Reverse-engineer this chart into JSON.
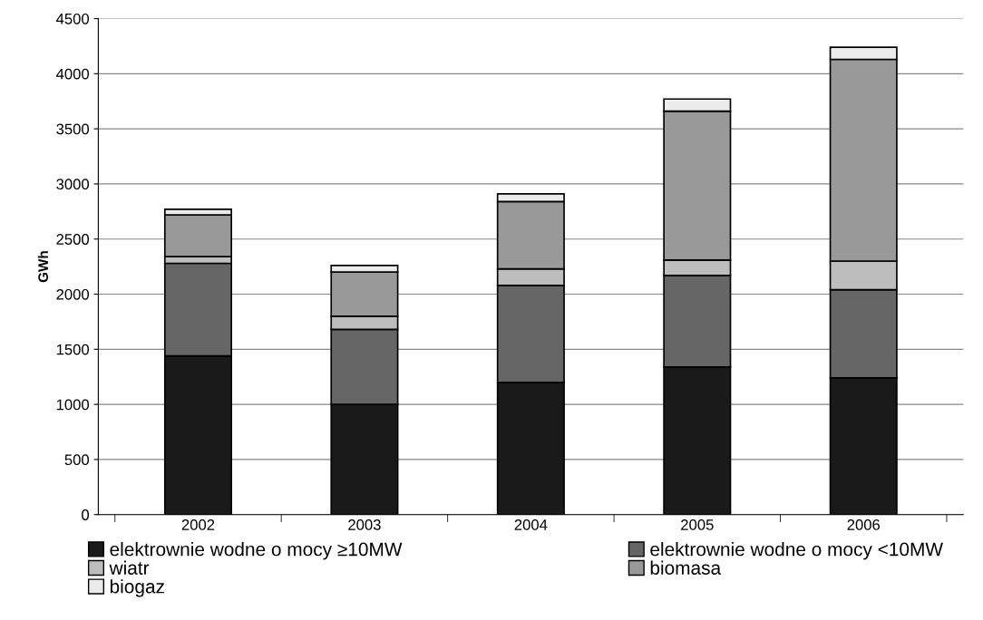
{
  "chart_data": {
    "type": "bar",
    "stacked": true,
    "ylabel": "GWh",
    "categories": [
      "2002",
      "2003",
      "2004",
      "2005",
      "2006"
    ],
    "series": [
      {
        "name": "elektrownie wodne o mocy ≥10MW",
        "color": "#1a1a1a",
        "values": [
          1440,
          1000,
          1200,
          1340,
          1240
        ]
      },
      {
        "name": "elektrownie wodne o mocy <10MW",
        "color": "#666666",
        "values": [
          840,
          680,
          880,
          830,
          800
        ]
      },
      {
        "name": "wiatr",
        "color": "#bdbdbd",
        "values": [
          60,
          120,
          150,
          140,
          260
        ]
      },
      {
        "name": "biomasa",
        "color": "#999999",
        "values": [
          380,
          400,
          610,
          1350,
          1830
        ]
      },
      {
        "name": "biogaz",
        "color": "#ebebeb",
        "values": [
          50,
          60,
          70,
          110,
          110
        ]
      }
    ],
    "ylim": [
      0,
      4500
    ],
    "yticks": [
      0,
      500,
      1000,
      1500,
      2000,
      2500,
      3000,
      3500,
      4000,
      4500
    ],
    "grid": "y",
    "legend": "bottom"
  }
}
